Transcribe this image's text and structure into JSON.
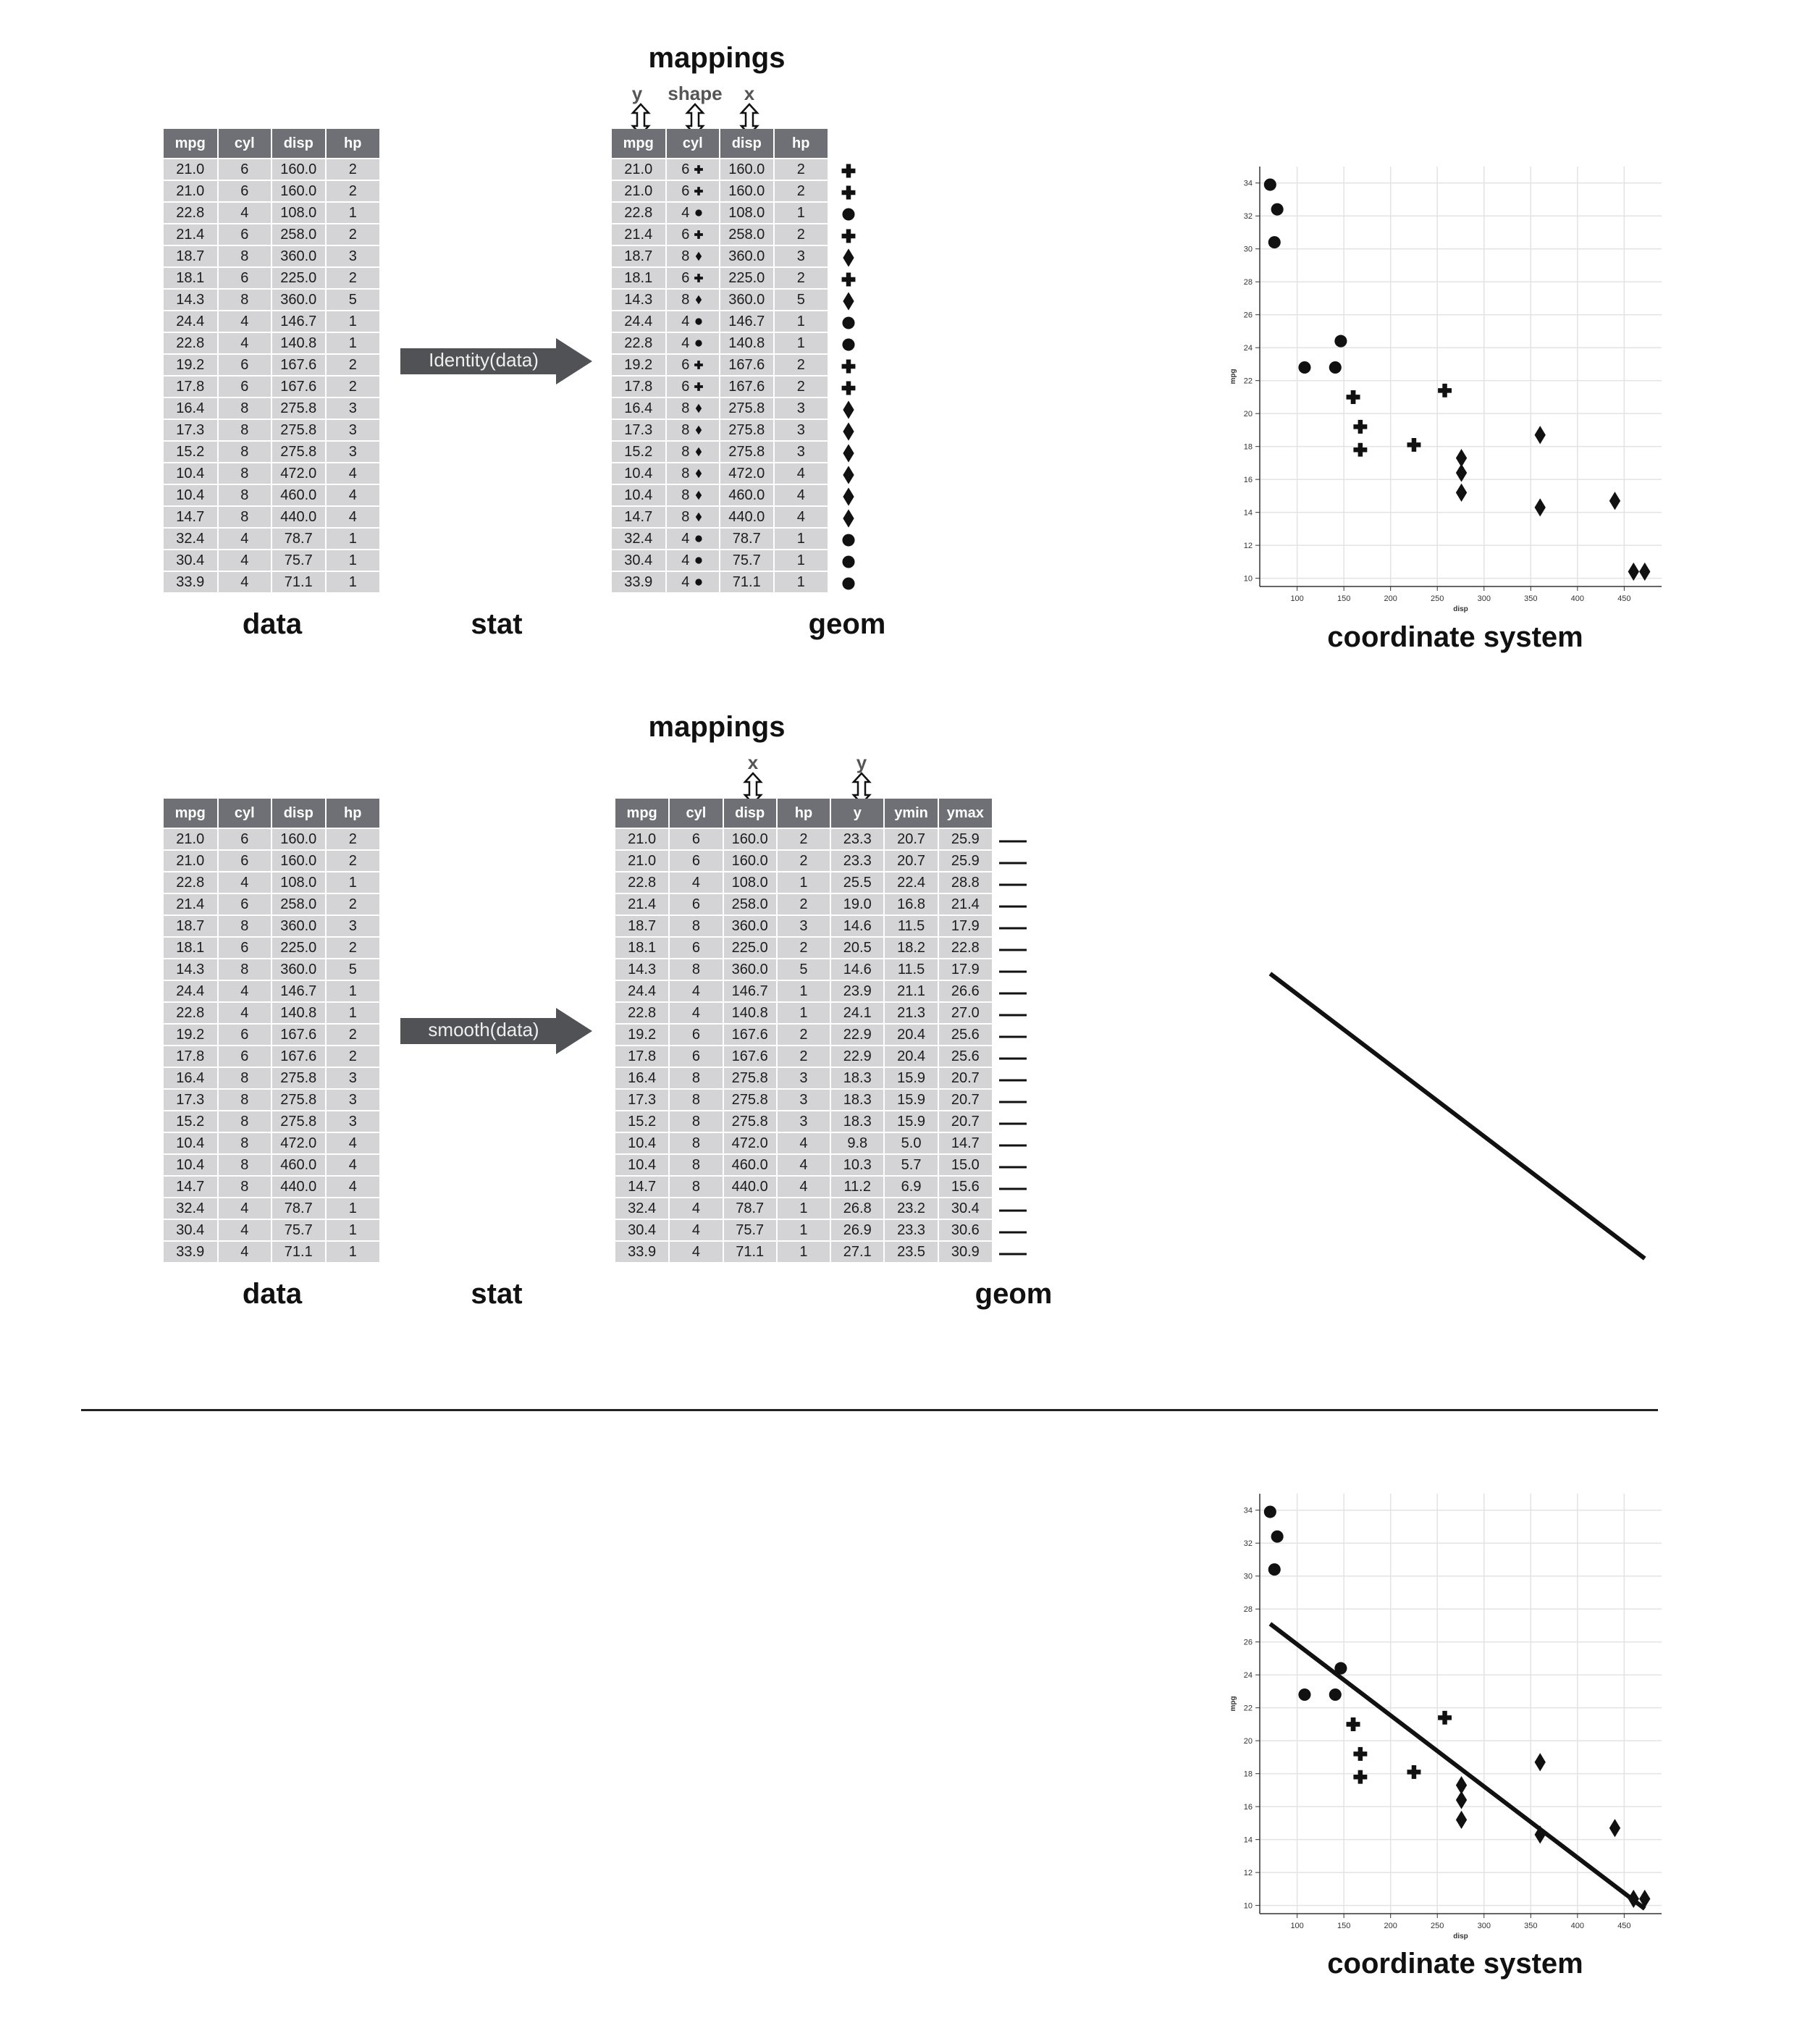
{
  "columns": [
    "mpg",
    "cyl",
    "disp",
    "hp"
  ],
  "rows": [
    [
      "21.0",
      "6",
      "160.0",
      "2"
    ],
    [
      "21.0",
      "6",
      "160.0",
      "2"
    ],
    [
      "22.8",
      "4",
      "108.0",
      "1"
    ],
    [
      "21.4",
      "6",
      "258.0",
      "2"
    ],
    [
      "18.7",
      "8",
      "360.0",
      "3"
    ],
    [
      "18.1",
      "6",
      "225.0",
      "2"
    ],
    [
      "14.3",
      "8",
      "360.0",
      "5"
    ],
    [
      "24.4",
      "4",
      "146.7",
      "1"
    ],
    [
      "22.8",
      "4",
      "140.8",
      "1"
    ],
    [
      "19.2",
      "6",
      "167.6",
      "2"
    ],
    [
      "17.8",
      "6",
      "167.6",
      "2"
    ],
    [
      "16.4",
      "8",
      "275.8",
      "3"
    ],
    [
      "17.3",
      "8",
      "275.8",
      "3"
    ],
    [
      "15.2",
      "8",
      "275.8",
      "3"
    ],
    [
      "10.4",
      "8",
      "472.0",
      "4"
    ],
    [
      "10.4",
      "8",
      "460.0",
      "4"
    ],
    [
      "14.7",
      "8",
      "440.0",
      "4"
    ],
    [
      "32.4",
      "4",
      "78.7",
      "1"
    ],
    [
      "30.4",
      "4",
      "75.7",
      "1"
    ],
    [
      "33.9",
      "4",
      "71.1",
      "1"
    ]
  ],
  "shape_map": {
    "4": "circle",
    "6": "plus",
    "8": "diamond"
  },
  "smooth_columns": [
    "mpg",
    "cyl",
    "disp",
    "hp",
    "y",
    "ymin",
    "ymax"
  ],
  "smooth_rows": [
    [
      "21.0",
      "6",
      "160.0",
      "2",
      "23.3",
      "20.7",
      "25.9"
    ],
    [
      "21.0",
      "6",
      "160.0",
      "2",
      "23.3",
      "20.7",
      "25.9"
    ],
    [
      "22.8",
      "4",
      "108.0",
      "1",
      "25.5",
      "22.4",
      "28.8"
    ],
    [
      "21.4",
      "6",
      "258.0",
      "2",
      "19.0",
      "16.8",
      "21.4"
    ],
    [
      "18.7",
      "8",
      "360.0",
      "3",
      "14.6",
      "11.5",
      "17.9"
    ],
    [
      "18.1",
      "6",
      "225.0",
      "2",
      "20.5",
      "18.2",
      "22.8"
    ],
    [
      "14.3",
      "8",
      "360.0",
      "5",
      "14.6",
      "11.5",
      "17.9"
    ],
    [
      "24.4",
      "4",
      "146.7",
      "1",
      "23.9",
      "21.1",
      "26.6"
    ],
    [
      "22.8",
      "4",
      "140.8",
      "1",
      "24.1",
      "21.3",
      "27.0"
    ],
    [
      "19.2",
      "6",
      "167.6",
      "2",
      "22.9",
      "20.4",
      "25.6"
    ],
    [
      "17.8",
      "6",
      "167.6",
      "2",
      "22.9",
      "20.4",
      "25.6"
    ],
    [
      "16.4",
      "8",
      "275.8",
      "3",
      "18.3",
      "15.9",
      "20.7"
    ],
    [
      "17.3",
      "8",
      "275.8",
      "3",
      "18.3",
      "15.9",
      "20.7"
    ],
    [
      "15.2",
      "8",
      "275.8",
      "3",
      "18.3",
      "15.9",
      "20.7"
    ],
    [
      "10.4",
      "8",
      "472.0",
      "4",
      "9.8",
      "5.0",
      "14.7"
    ],
    [
      "10.4",
      "8",
      "460.0",
      "4",
      "10.3",
      "5.7",
      "15.0"
    ],
    [
      "14.7",
      "8",
      "440.0",
      "4",
      "11.2",
      "6.9",
      "15.6"
    ],
    [
      "32.4",
      "4",
      "78.7",
      "1",
      "26.8",
      "23.2",
      "30.4"
    ],
    [
      "30.4",
      "4",
      "75.7",
      "1",
      "26.9",
      "23.3",
      "30.6"
    ],
    [
      "33.9",
      "4",
      "71.1",
      "1",
      "27.1",
      "23.5",
      "30.9"
    ]
  ],
  "labels": {
    "data": "data",
    "stat": "stat",
    "geom": "geom",
    "mappings": "mappings",
    "coord": "coordinate system"
  },
  "aes_top": {
    "y": "y",
    "shape": "shape",
    "x": "x"
  },
  "aes_mid": {
    "x": "x",
    "y": "y"
  },
  "stat_top": "Identity(data)",
  "stat_mid": "smooth(data)",
  "chart_data": [
    {
      "type": "scatter",
      "xlabel": "disp",
      "ylabel": "mpg",
      "xticks": [
        100,
        150,
        200,
        250,
        300,
        350,
        400,
        450
      ],
      "yticks": [
        10,
        12,
        14,
        16,
        18,
        20,
        22,
        24,
        26,
        28,
        30,
        32,
        34
      ],
      "xlim": [
        60,
        490
      ],
      "ylim": [
        9.5,
        35
      ],
      "grid": true,
      "points": [
        [
          160.0,
          21.0,
          "plus"
        ],
        [
          160.0,
          21.0,
          "plus"
        ],
        [
          108.0,
          22.8,
          "circle"
        ],
        [
          258.0,
          21.4,
          "plus"
        ],
        [
          360.0,
          18.7,
          "diamond"
        ],
        [
          225.0,
          18.1,
          "plus"
        ],
        [
          360.0,
          14.3,
          "diamond"
        ],
        [
          146.7,
          24.4,
          "circle"
        ],
        [
          140.8,
          22.8,
          "circle"
        ],
        [
          167.6,
          19.2,
          "plus"
        ],
        [
          167.6,
          17.8,
          "plus"
        ],
        [
          275.8,
          16.4,
          "diamond"
        ],
        [
          275.8,
          17.3,
          "diamond"
        ],
        [
          275.8,
          15.2,
          "diamond"
        ],
        [
          472.0,
          10.4,
          "diamond"
        ],
        [
          460.0,
          10.4,
          "diamond"
        ],
        [
          440.0,
          14.7,
          "diamond"
        ],
        [
          78.7,
          32.4,
          "circle"
        ],
        [
          75.7,
          30.4,
          "circle"
        ],
        [
          71.1,
          33.9,
          "circle"
        ]
      ]
    },
    {
      "type": "line",
      "x": [
        71.1,
        472.0
      ],
      "y": [
        27.1,
        9.8
      ]
    },
    {
      "type": "scatter",
      "xlabel": "disp",
      "ylabel": "mpg",
      "xticks": [
        100,
        150,
        200,
        250,
        300,
        350,
        400,
        450
      ],
      "yticks": [
        10,
        12,
        14,
        16,
        18,
        20,
        22,
        24,
        26,
        28,
        30,
        32,
        34
      ],
      "xlim": [
        60,
        490
      ],
      "ylim": [
        9.5,
        35
      ],
      "grid": true,
      "fit_line": {
        "x": [
          71.1,
          472.0
        ],
        "y": [
          27.1,
          9.8
        ]
      }
    }
  ]
}
